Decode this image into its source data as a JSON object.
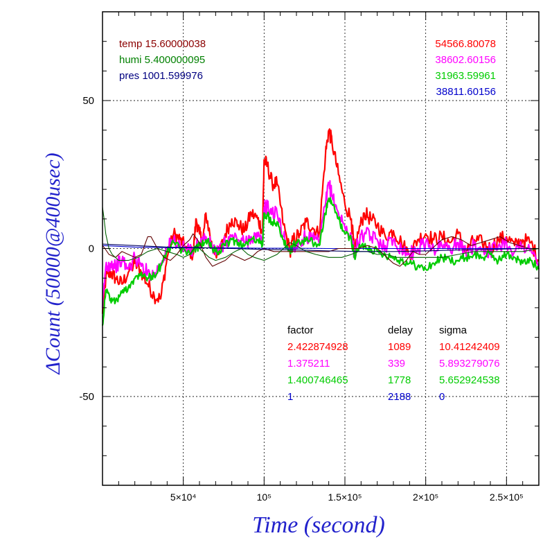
{
  "chart_data": {
    "type": "line",
    "title": "",
    "xlabel": "Time (second)",
    "ylabel": "ΔCount (50000@400usec)",
    "xlim": [
      0,
      270000
    ],
    "ylim": [
      -80,
      80
    ],
    "grid": true,
    "x_ticks": [
      {
        "value": 50000,
        "label": "5×10⁴"
      },
      {
        "value": 100000,
        "label": "10⁵"
      },
      {
        "value": 150000,
        "label": "1.5×10⁵"
      },
      {
        "value": 200000,
        "label": "2×10⁵"
      },
      {
        "value": 250000,
        "label": "2.5×10⁵"
      }
    ],
    "y_ticks": [
      {
        "value": 50,
        "label": "50"
      },
      {
        "value": 0,
        "label": "0"
      },
      {
        "value": -50,
        "label": "-50"
      }
    ],
    "env_labels": [
      {
        "text": "temp 15.60000038",
        "color": "#8b0000"
      },
      {
        "text": "humi 5.400000095",
        "color": "#008000"
      },
      {
        "text": "pres 1001.599976",
        "color": "#000080"
      }
    ],
    "count_labels": [
      {
        "text": "54566.80078",
        "color": "#ff0000"
      },
      {
        "text": "38602.60156",
        "color": "#ff00ff"
      },
      {
        "text": "31963.59961",
        "color": "#00cc00"
      },
      {
        "text": "38811.60156",
        "color": "#0000cc"
      }
    ],
    "fit_table": {
      "headers": [
        "factor",
        "delay",
        "sigma"
      ],
      "rows": [
        {
          "color": "#ff0000",
          "factor": "2.422874928",
          "delay": "1089",
          "sigma": "10.41242409"
        },
        {
          "color": "#ff00ff",
          "factor": "1.375211",
          "delay": "339",
          "sigma": "5.893279076"
        },
        {
          "color": "#00cc00",
          "factor": "1.400746465",
          "delay": "1778",
          "sigma": "5.652924538"
        },
        {
          "color": "#0000cc",
          "factor": "1",
          "delay": "2188",
          "sigma": "0"
        }
      ]
    },
    "series": [
      {
        "color": "#ff0000",
        "band": 5,
        "x": [
          0,
          2000,
          5000,
          8000,
          12000,
          16000,
          20000,
          24000,
          28000,
          32000,
          36000,
          40000,
          44000,
          48000,
          52000,
          56000,
          58000,
          60000,
          62000,
          64000,
          68000,
          72000,
          76000,
          80000,
          84000,
          88000,
          92000,
          96000,
          99000,
          100000,
          102000,
          105000,
          108000,
          112000,
          116000,
          118000,
          122000,
          126000,
          130000,
          134000,
          138000,
          140000,
          142000,
          146000,
          150000,
          154000,
          156000,
          158000,
          162000,
          166000,
          170000,
          175000,
          180000,
          185000,
          190000,
          195000,
          200000,
          205000,
          210000,
          215000,
          220000,
          225000,
          230000,
          235000,
          240000,
          245000,
          250000,
          255000,
          260000,
          265000,
          270000
        ],
        "y": [
          -22,
          -10,
          -8,
          -10,
          -12,
          -8,
          -5,
          -8,
          -12,
          -16,
          -17,
          -3,
          5,
          3,
          0,
          -2,
          10,
          5,
          2,
          12,
          0,
          -2,
          5,
          10,
          8,
          6,
          12,
          10,
          6,
          30,
          28,
          22,
          22,
          8,
          -1,
          3,
          5,
          9,
          7,
          5,
          32,
          40,
          36,
          25,
          15,
          10,
          -2,
          5,
          12,
          10,
          8,
          4,
          6,
          2,
          -2,
          3,
          5,
          3,
          4,
          2,
          5,
          -1,
          3,
          2,
          0,
          3,
          4,
          1,
          3,
          2,
          -4
        ]
      },
      {
        "color": "#ff00ff",
        "band": 5,
        "x": [
          0,
          2000,
          5000,
          8000,
          12000,
          16000,
          20000,
          24000,
          28000,
          32000,
          36000,
          40000,
          44000,
          48000,
          52000,
          56000,
          60000,
          64000,
          68000,
          72000,
          76000,
          80000,
          84000,
          88000,
          92000,
          96000,
          99000,
          100000,
          102000,
          105000,
          108000,
          112000,
          116000,
          118000,
          122000,
          126000,
          130000,
          134000,
          138000,
          140000,
          142000,
          146000,
          150000,
          154000,
          156000,
          158000,
          162000,
          166000,
          170000,
          175000,
          180000,
          185000,
          190000,
          195000,
          200000,
          205000,
          210000,
          215000,
          220000,
          225000,
          230000,
          235000,
          240000,
          245000,
          250000,
          255000,
          260000,
          265000,
          270000
        ],
        "y": [
          -20,
          -6,
          -5,
          -6,
          -4,
          -7,
          -3,
          -6,
          -8,
          -9,
          -5,
          0,
          3,
          1,
          -1,
          0,
          2,
          4,
          0,
          -1,
          2,
          4,
          3,
          2,
          4,
          4,
          2,
          14,
          14,
          12,
          12,
          4,
          -1,
          1,
          2,
          4,
          3,
          2,
          15,
          22,
          18,
          12,
          7,
          4,
          -2,
          2,
          5,
          4,
          3,
          1,
          3,
          0,
          -2,
          0,
          2,
          0,
          1,
          0,
          2,
          -2,
          1,
          0,
          -1,
          1,
          2,
          -1,
          1,
          0,
          -7
        ]
      },
      {
        "color": "#00cc00",
        "band": 3,
        "x": [
          0,
          2000,
          5000,
          8000,
          12000,
          16000,
          20000,
          24000,
          28000,
          32000,
          36000,
          40000,
          44000,
          48000,
          52000,
          56000,
          60000,
          64000,
          68000,
          72000,
          76000,
          80000,
          84000,
          88000,
          92000,
          96000,
          99000,
          100000,
          102000,
          105000,
          108000,
          112000,
          116000,
          118000,
          122000,
          126000,
          130000,
          134000,
          138000,
          140000,
          142000,
          146000,
          150000,
          154000,
          156000,
          158000,
          162000,
          166000,
          170000,
          175000,
          180000,
          185000,
          190000,
          195000,
          200000,
          205000,
          210000,
          215000,
          220000,
          225000,
          230000,
          235000,
          240000,
          245000,
          250000,
          255000,
          260000,
          265000,
          270000
        ],
        "y": [
          -26,
          -14,
          -17,
          -18,
          -15,
          -13,
          -10,
          -8,
          -10,
          -9,
          -6,
          -1,
          2,
          0,
          -2,
          -1,
          1,
          3,
          0,
          -1,
          1,
          3,
          2,
          1,
          3,
          3,
          1,
          12,
          11,
          9,
          9,
          3,
          -1,
          1,
          2,
          3,
          2,
          1,
          12,
          17,
          15,
          10,
          5,
          3,
          -3,
          0,
          1,
          0,
          -1,
          -2,
          -3,
          -4,
          -5,
          -6,
          -7,
          -5,
          -3,
          -4,
          -4,
          -3,
          -2,
          -3,
          -2,
          -4,
          -2,
          -3,
          -5,
          -4,
          -7
        ]
      },
      {
        "color": "#0000cc",
        "band": 0,
        "x": [
          0,
          20000,
          40000,
          60000,
          80000,
          100000,
          120000,
          140000,
          160000,
          180000,
          200000,
          220000,
          240000,
          260000,
          270000
        ],
        "y": [
          1,
          0.5,
          0.3,
          0.2,
          0.2,
          0.1,
          0.1,
          0,
          0,
          0,
          0,
          0,
          0,
          0,
          0
        ]
      },
      {
        "color": "#600000",
        "band": 0,
        "x": [
          0,
          1500,
          4000,
          8000,
          12000,
          16000,
          20000,
          24000,
          28000,
          30000,
          34000,
          38000,
          42000,
          46000,
          50000,
          54000,
          56000,
          60000,
          64000,
          68000,
          72000,
          76000,
          80000,
          84000,
          88000,
          92000,
          96000,
          100000,
          106000,
          112000,
          118000,
          124000,
          130000,
          136000,
          140000,
          146000,
          152000,
          158000,
          164000,
          170000,
          176000,
          180000,
          184000,
          188000,
          192000,
          196000,
          200000,
          204000,
          210000,
          216000,
          222000,
          228000,
          234000,
          240000,
          246000,
          252000,
          258000,
          264000,
          270000
        ],
        "y": [
          1,
          0,
          -2,
          -3,
          -1,
          -2,
          -3,
          -2,
          4,
          4,
          0,
          -3,
          -4,
          -2,
          1,
          3,
          5,
          2,
          -3,
          -6,
          -5,
          -4,
          -2,
          -3,
          -4,
          -3,
          -1,
          0,
          -1,
          -1,
          -1,
          -1,
          -1,
          -1,
          -1,
          0,
          0,
          0,
          1,
          0,
          -3,
          -5,
          -6,
          -4,
          -1,
          -2,
          -2,
          0,
          3,
          4,
          3,
          1,
          2,
          3,
          4,
          2,
          1,
          0,
          0
        ]
      },
      {
        "color": "#006000",
        "band": 0,
        "x": [
          0,
          1000,
          2000,
          4000,
          6000,
          10000,
          16000,
          22000,
          28000,
          34000,
          40000,
          46000,
          50000,
          54000,
          58000,
          62000,
          66000,
          70000,
          76000,
          82000,
          86000,
          90000,
          94000,
          100000,
          104000,
          108000,
          112000,
          116000,
          120000,
          126000,
          132000,
          140000,
          148000,
          154000,
          158000,
          164000,
          170000,
          176000,
          182000,
          190000,
          200000,
          210000,
          220000,
          230000,
          240000,
          250000,
          260000,
          270000
        ],
        "y": [
          14,
          10,
          5,
          0,
          -2,
          -4,
          -4,
          -3,
          -1,
          0,
          -1,
          -2,
          -3,
          -2,
          1,
          -1,
          -3,
          -4,
          -3,
          -1,
          0,
          -2,
          -3,
          -4,
          -3,
          -2,
          0,
          2,
          1,
          -1,
          -2,
          -3,
          -3,
          -2,
          -1,
          -1,
          -2,
          -2,
          -3,
          -3,
          -3,
          -3,
          -2,
          -1,
          -1,
          -1,
          -1,
          0
        ]
      },
      {
        "color": "#000060",
        "band": 0,
        "x": [
          0,
          20000,
          40000,
          60000,
          80000,
          100000,
          120000,
          140000,
          160000,
          180000,
          200000,
          220000,
          240000,
          260000,
          270000
        ],
        "y": [
          1.5,
          1,
          0.5,
          0.3,
          0,
          -0.3,
          -0.5,
          -0.8,
          -1,
          -1,
          -0.8,
          -0.5,
          -0.3,
          0,
          0
        ]
      }
    ]
  }
}
